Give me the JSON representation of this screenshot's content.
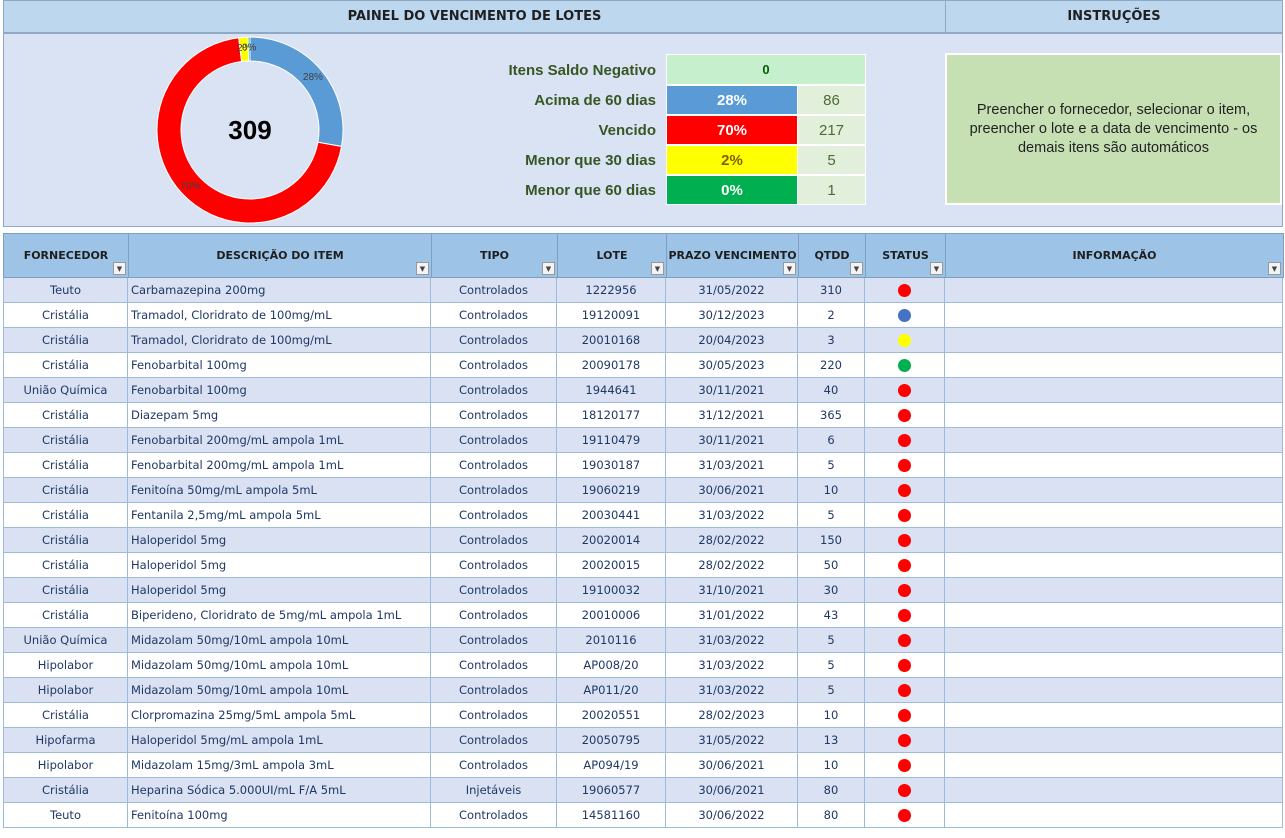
{
  "header": {
    "title": "PAINEL DO VENCIMENTO DE LOTES",
    "instructions_title": "INSTRUÇÕES"
  },
  "summary": {
    "negative_label": "Itens Saldo Negativo",
    "negative_value": 0,
    "total": 309,
    "segments": [
      {
        "name": "Acima de 60 dias",
        "percent": "28%",
        "count": 86,
        "color": "#5b9bd5"
      },
      {
        "name": "Vencido",
        "percent": "70%",
        "count": 217,
        "color": "#ff0000"
      },
      {
        "name": "Menor que 30 dias",
        "percent": "2%",
        "count": 5,
        "color": "#ffff00"
      },
      {
        "name": "Menor que 60 dias",
        "percent": "0%",
        "count": 1,
        "color": "#00b050"
      }
    ]
  },
  "instructions": "Preencher o fornecedor, selecionar o item, preencher o lote e a data de vencimento - os demais itens são automáticos",
  "table": {
    "columns": [
      "FORNECEDOR",
      "DESCRIÇÃO DO ITEM",
      "TIPO",
      "LOTE",
      "PRAZO VENCIMENTO",
      "QTDD",
      "STATUS",
      "INFORMAÇÃO"
    ],
    "rows": [
      [
        "Teuto",
        "Carbamazepina 200mg",
        "Controlados",
        "1222956",
        "31/05/2022",
        310
      ],
      [
        "Cristália",
        "Tramadol, Cloridrato de 100mg/mL",
        "Controlados",
        "19120091",
        "30/12/2023",
        2
      ],
      [
        "Cristália",
        "Tramadol, Cloridrato de 100mg/mL",
        "Controlados",
        "20010168",
        "20/04/2023",
        3
      ],
      [
        "Cristália",
        "Fenobarbital 100mg",
        "Controlados",
        "20090178",
        "30/05/2023",
        220
      ],
      [
        "União Química",
        "Fenobarbital 100mg",
        "Controlados",
        "1944641",
        "30/11/2021",
        40
      ],
      [
        "Cristália",
        "Diazepam 5mg",
        "Controlados",
        "18120177",
        "31/12/2021",
        365
      ],
      [
        "Cristália",
        "Fenobarbital 200mg/mL ampola 1mL",
        "Controlados",
        "19110479",
        "30/11/2021",
        6
      ],
      [
        "Cristália",
        "Fenobarbital 200mg/mL ampola 1mL",
        "Controlados",
        "19030187",
        "31/03/2021",
        5
      ],
      [
        "Cristália",
        "Fenitoína 50mg/mL ampola 5mL",
        "Controlados",
        "19060219",
        "30/06/2021",
        10
      ],
      [
        "Cristália",
        "Fentanila 2,5mg/mL ampola 5mL",
        "Controlados",
        "20030441",
        "31/03/2022",
        5
      ],
      [
        "Cristália",
        "Haloperidol 5mg",
        "Controlados",
        "20020014",
        "28/02/2022",
        150
      ],
      [
        "Cristália",
        "Haloperidol 5mg",
        "Controlados",
        "20020015",
        "28/02/2022",
        50
      ],
      [
        "Cristália",
        "Haloperidol 5mg",
        "Controlados",
        "19100032",
        "31/10/2021",
        30
      ],
      [
        "Cristália",
        "Biperideno, Cloridrato de 5mg/mL ampola 1mL",
        "Controlados",
        "20010006",
        "31/01/2022",
        43
      ],
      [
        "União Química",
        "Midazolam 50mg/10mL ampola 10mL",
        "Controlados",
        "2010116",
        "31/03/2022",
        5
      ],
      [
        "Hipolabor",
        "Midazolam 50mg/10mL ampola 10mL",
        "Controlados",
        "AP008/20",
        "31/03/2022",
        5
      ],
      [
        "Hipolabor",
        "Midazolam 50mg/10mL ampola 10mL",
        "Controlados",
        "AP011/20",
        "31/03/2022",
        5
      ],
      [
        "Cristália",
        "Clorpromazina 25mg/5mL ampola 5mL",
        "Controlados",
        "20020551",
        "28/02/2023",
        10
      ],
      [
        "Hipofarma",
        "Haloperidol 5mg/mL ampola 1mL",
        "Controlados",
        "20050795",
        "31/05/2022",
        13
      ],
      [
        "Hipolabor",
        "Midazolam 15mg/3mL ampola 3mL",
        "Controlados",
        "AP094/19",
        "30/06/2021",
        10
      ],
      [
        "Cristália",
        "Heparina Sódica 5.000UI/mL F/A 5mL",
        "Injetáveis",
        "19060577",
        "30/06/2021",
        80
      ],
      [
        "Teuto",
        "Fenitoína 100mg",
        "Controlados",
        "14581160",
        "30/06/2022",
        80
      ]
    ],
    "status_colors": [
      "#ff0000",
      "#4472c4",
      "#ffff00",
      "#00b050",
      "#ff0000",
      "#ff0000",
      "#ff0000",
      "#ff0000",
      "#ff0000",
      "#ff0000",
      "#ff0000",
      "#ff0000",
      "#ff0000",
      "#ff0000",
      "#ff0000",
      "#ff0000",
      "#ff0000",
      "#ff0000",
      "#ff0000",
      "#ff0000",
      "#ff0000",
      "#ff0000"
    ]
  }
}
